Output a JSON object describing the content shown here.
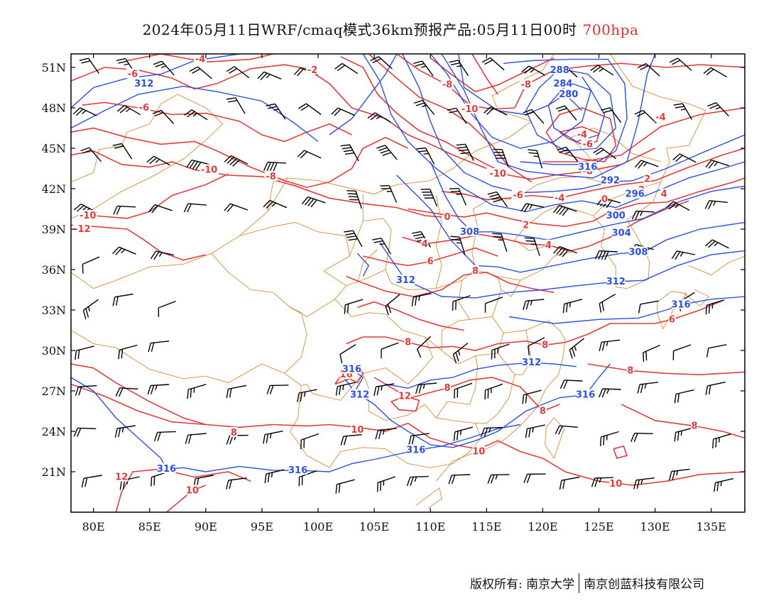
{
  "title": {
    "main": "2024年05月11日WRF/cmaq模式36km预报产品:05月11日00时",
    "level": "700hpa"
  },
  "colors": {
    "temperature": "#e23b3b",
    "height": "#2d4fe0",
    "border": "#d98a3a",
    "wind": "#000000",
    "frame": "#000000"
  },
  "axes": {
    "lat_labels": [
      "51N",
      "48N",
      "45N",
      "42N",
      "39N",
      "36N",
      "33N",
      "30N",
      "27N",
      "24N",
      "21N"
    ],
    "lat_values": [
      51,
      48,
      45,
      42,
      39,
      36,
      33,
      30,
      27,
      24,
      21
    ],
    "lon_labels": [
      "80E",
      "85E",
      "90E",
      "95E",
      "100E",
      "105E",
      "110E",
      "115E",
      "120E",
      "125E",
      "130E",
      "135E"
    ],
    "lon_values": [
      80,
      85,
      90,
      95,
      100,
      105,
      110,
      115,
      120,
      125,
      130,
      135
    ],
    "lon_range": [
      78,
      138
    ],
    "lat_range": [
      18,
      52
    ]
  },
  "temperature_labels": [
    {
      "text": "-4",
      "lon": 89.5,
      "lat": 51.6
    },
    {
      "text": "-2",
      "lon": 99.5,
      "lat": 50.8
    },
    {
      "text": "-6",
      "lon": 83.5,
      "lat": 50.5
    },
    {
      "text": "-6",
      "lon": 84.5,
      "lat": 48.0
    },
    {
      "text": "-8",
      "lon": 111.5,
      "lat": 49.7
    },
    {
      "text": "-8",
      "lon": 118.5,
      "lat": 49.7
    },
    {
      "text": "-10",
      "lon": 113.5,
      "lat": 47.9
    },
    {
      "text": "-4",
      "lon": 123.5,
      "lat": 46.0
    },
    {
      "text": "-6",
      "lon": 124.0,
      "lat": 45.3
    },
    {
      "text": "-4",
      "lon": 130.5,
      "lat": 47.3
    },
    {
      "text": "-10",
      "lon": 90.3,
      "lat": 43.4
    },
    {
      "text": "-8",
      "lon": 95.8,
      "lat": 42.9
    },
    {
      "text": "-10",
      "lon": 116.0,
      "lat": 43.1
    },
    {
      "text": "-8",
      "lon": 124.0,
      "lat": 43.3
    },
    {
      "text": "-6",
      "lon": 117.8,
      "lat": 41.5
    },
    {
      "text": "-4",
      "lon": 121.5,
      "lat": 41.3
    },
    {
      "text": "0",
      "lon": 125.5,
      "lat": 41.2
    },
    {
      "text": "2",
      "lon": 129.3,
      "lat": 42.7
    },
    {
      "text": "2",
      "lon": 128.8,
      "lat": 41.9
    },
    {
      "text": "4",
      "lon": 130.8,
      "lat": 41.6
    },
    {
      "text": "0",
      "lon": 111.5,
      "lat": 39.9
    },
    {
      "text": "2",
      "lon": 118.5,
      "lat": 39.3
    },
    {
      "text": "4",
      "lon": 120.5,
      "lat": 37.8
    },
    {
      "text": "4",
      "lon": 109.5,
      "lat": 37.9
    },
    {
      "text": "-10",
      "lon": 79.5,
      "lat": 40.0
    },
    {
      "text": "-12",
      "lon": 79.0,
      "lat": 39.0
    },
    {
      "text": "6",
      "lon": 110.0,
      "lat": 36.6
    },
    {
      "text": "8",
      "lon": 114.0,
      "lat": 35.9
    },
    {
      "text": "6",
      "lon": 131.5,
      "lat": 32.3
    },
    {
      "text": "8",
      "lon": 108.0,
      "lat": 30.6
    },
    {
      "text": "8",
      "lon": 120.2,
      "lat": 30.4
    },
    {
      "text": "8",
      "lon": 127.8,
      "lat": 28.5
    },
    {
      "text": "16",
      "lon": 102.5,
      "lat": 28.2
    },
    {
      "text": "12",
      "lon": 107.7,
      "lat": 26.6
    },
    {
      "text": "8",
      "lon": 111.5,
      "lat": 27.2
    },
    {
      "text": "8",
      "lon": 120.0,
      "lat": 25.5
    },
    {
      "text": "8",
      "lon": 92.5,
      "lat": 23.9
    },
    {
      "text": "10",
      "lon": 103.5,
      "lat": 24.1
    },
    {
      "text": "10",
      "lon": 114.3,
      "lat": 22.5
    },
    {
      "text": "8",
      "lon": 133.5,
      "lat": 24.4
    },
    {
      "text": "12",
      "lon": 82.5,
      "lat": 20.6
    },
    {
      "text": "10",
      "lon": 88.8,
      "lat": 19.6
    },
    {
      "text": "10",
      "lon": 126.5,
      "lat": 20.1
    }
  ],
  "height_labels": [
    {
      "text": "312",
      "lon": 84.5,
      "lat": 49.8
    },
    {
      "text": "288",
      "lon": 121.5,
      "lat": 50.8
    },
    {
      "text": "284",
      "lon": 121.8,
      "lat": 49.8
    },
    {
      "text": "280",
      "lon": 122.3,
      "lat": 49.0
    },
    {
      "text": "316",
      "lon": 124.0,
      "lat": 43.6
    },
    {
      "text": "292",
      "lon": 126.0,
      "lat": 42.6
    },
    {
      "text": "296",
      "lon": 128.2,
      "lat": 41.6
    },
    {
      "text": "300",
      "lon": 126.5,
      "lat": 40.0
    },
    {
      "text": "304",
      "lon": 127.0,
      "lat": 38.7
    },
    {
      "text": "308",
      "lon": 113.5,
      "lat": 38.8
    },
    {
      "text": "308",
      "lon": 128.5,
      "lat": 37.3
    },
    {
      "text": "312",
      "lon": 107.8,
      "lat": 35.2
    },
    {
      "text": "312",
      "lon": 126.5,
      "lat": 35.1
    },
    {
      "text": "316",
      "lon": 132.3,
      "lat": 33.4
    },
    {
      "text": "316",
      "lon": 103.0,
      "lat": 28.6
    },
    {
      "text": "312",
      "lon": 119.0,
      "lat": 29.1
    },
    {
      "text": "312",
      "lon": 103.7,
      "lat": 26.7
    },
    {
      "text": "316",
      "lon": 123.8,
      "lat": 26.7
    },
    {
      "text": "316",
      "lon": 108.7,
      "lat": 22.6
    },
    {
      "text": "316",
      "lon": 86.5,
      "lat": 21.2
    },
    {
      "text": "316",
      "lon": 98.2,
      "lat": 21.1
    }
  ],
  "footer": {
    "left": "版权所有: 南京大学",
    "right": "南京创蓝科技有限公司"
  }
}
